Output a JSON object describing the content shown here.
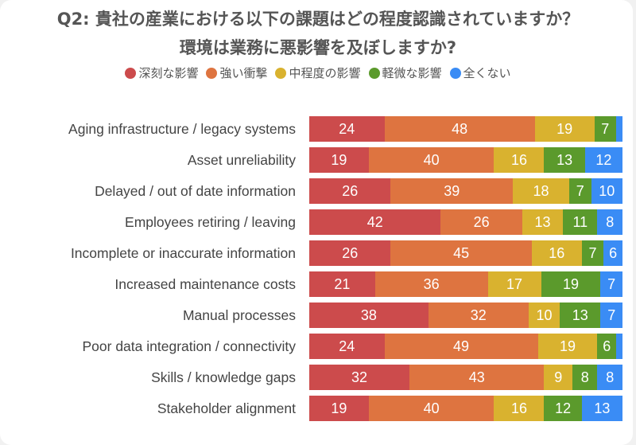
{
  "chart_data": {
    "type": "bar",
    "orientation": "horizontal",
    "stacked": true,
    "title": "Q2: 貴社の産業における以下の課題はどの程度認識されていますか？",
    "subtitle": "環境は業務に悪影響を及ぼしますか?",
    "legend_position": "top",
    "xlim": [
      0,
      100
    ],
    "categories": [
      "Aging infrastructure / legacy systems",
      "Asset unreliability",
      "Delayed / out of date information",
      "Employees retiring / leaving",
      "Incomplete or inaccurate information",
      "Increased maintenance costs",
      "Manual processes",
      "Poor data integration / connectivity",
      "Skills / knowledge gaps",
      "Stakeholder alignment"
    ],
    "series": [
      {
        "name": "深刻な影響",
        "color": "#cc4b4c",
        "values": [
          24,
          19,
          26,
          42,
          26,
          21,
          38,
          24,
          32,
          19
        ]
      },
      {
        "name": "強い衝撃",
        "color": "#de7440",
        "values": [
          48,
          40,
          39,
          26,
          45,
          36,
          32,
          49,
          43,
          40
        ]
      },
      {
        "name": "中程度の影響",
        "color": "#d9b22f",
        "values": [
          19,
          16,
          18,
          13,
          16,
          17,
          10,
          19,
          9,
          16
        ]
      },
      {
        "name": "軽微な影響",
        "color": "#5b9a2c",
        "values": [
          7,
          13,
          7,
          11,
          7,
          19,
          13,
          6,
          8,
          12
        ]
      },
      {
        "name": "全くない",
        "color": "#3a8cf5",
        "values": [
          2,
          12,
          10,
          8,
          6,
          7,
          7,
          2,
          8,
          13
        ]
      }
    ],
    "label_min": 5
  }
}
